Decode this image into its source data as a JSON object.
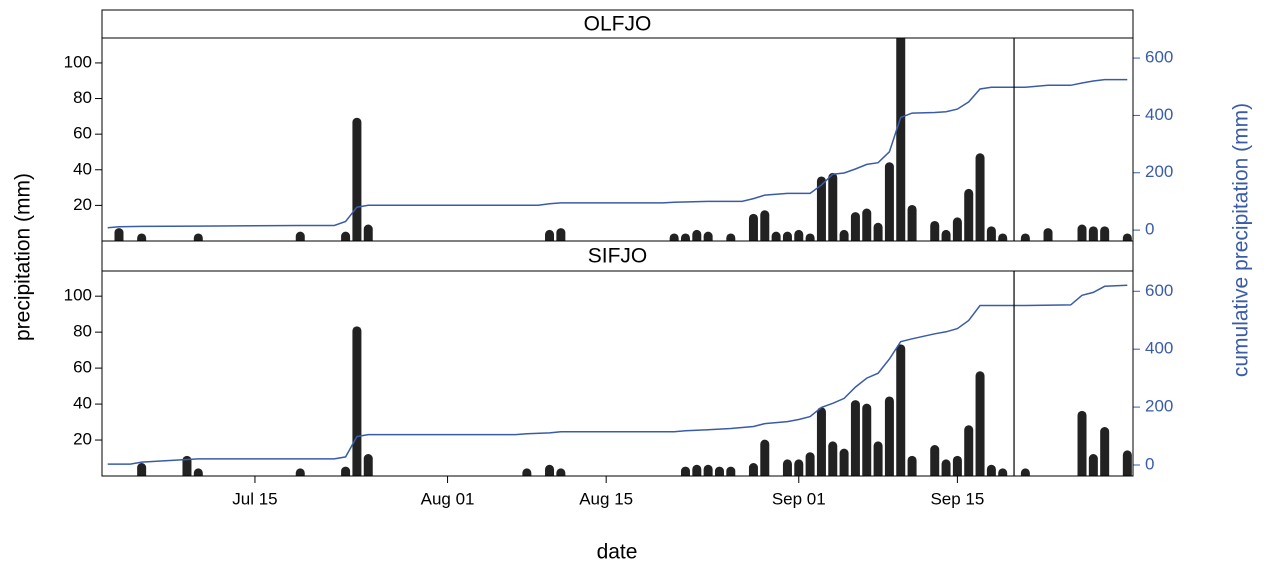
{
  "chart_data": [
    {
      "type": "combo",
      "title": "OLFJO",
      "ylabel": "precipitation (mm)",
      "y2label": "cumulative precipitation (mm)",
      "xlim": [
        "07-02",
        "09-30"
      ],
      "ylim": [
        0,
        114
      ],
      "yticks": [
        20,
        40,
        60,
        80,
        100
      ],
      "y2lim": [
        -38,
        670
      ],
      "y2ticks": [
        0,
        200,
        400,
        600
      ],
      "vline": "09-20",
      "series": [
        {
          "type": "bar",
          "color": "#222222",
          "x": [
            "07-03",
            "07-05",
            "07-10",
            "07-19",
            "07-23",
            "07-24",
            "07-25",
            "08-10",
            "08-11",
            "08-21",
            "08-22",
            "08-23",
            "08-24",
            "08-26",
            "08-28",
            "08-29",
            "08-30",
            "08-31",
            "09-01",
            "09-02",
            "09-03",
            "09-04",
            "09-05",
            "09-06",
            "09-07",
            "09-08",
            "09-09",
            "09-10",
            "09-11",
            "09-13",
            "09-14",
            "09-15",
            "09-16",
            "09-17",
            "09-18",
            "09-19",
            "09-21",
            "09-23",
            "09-26",
            "09-27",
            "09-28",
            "09-30"
          ],
          "values": [
            5,
            2,
            2,
            3,
            3,
            67,
            7,
            4,
            5,
            2,
            2,
            4,
            3,
            2,
            13,
            15,
            3,
            3,
            4,
            2,
            34,
            36,
            4,
            14,
            16,
            8,
            42,
            120,
            18,
            9,
            4,
            11,
            27,
            47,
            6,
            2,
            2,
            5,
            7,
            6,
            6,
            2
          ]
        },
        {
          "type": "line",
          "axis": "y2",
          "color": "#3a5ca8",
          "x": [
            "07-02",
            "07-03",
            "07-05",
            "07-10",
            "07-19",
            "07-22",
            "07-23",
            "07-24",
            "07-25",
            "08-09",
            "08-10",
            "08-11",
            "08-20",
            "08-21",
            "08-24",
            "08-27",
            "08-28",
            "08-29",
            "08-31",
            "09-02",
            "09-03",
            "09-04",
            "09-05",
            "09-06",
            "09-07",
            "09-08",
            "09-09",
            "09-10",
            "09-11",
            "09-13",
            "09-14",
            "09-15",
            "09-16",
            "09-17",
            "09-18",
            "09-21",
            "09-23",
            "09-25",
            "09-26",
            "09-27",
            "09-28",
            "09-30"
          ],
          "values": [
            8,
            12,
            13,
            14,
            16,
            16,
            30,
            80,
            87,
            87,
            92,
            95,
            95,
            97,
            100,
            100,
            110,
            122,
            128,
            128,
            157,
            195,
            199,
            213,
            229,
            235,
            273,
            393,
            408,
            410,
            413,
            422,
            447,
            492,
            498,
            498,
            505,
            505,
            513,
            520,
            525,
            525
          ]
        }
      ]
    },
    {
      "type": "combo",
      "title": "SIFJO",
      "xlabel": "date",
      "xlim": [
        "07-02",
        "09-30"
      ],
      "ylim": [
        0,
        114
      ],
      "yticks": [
        20,
        40,
        60,
        80,
        100
      ],
      "y2lim": [
        -38,
        670
      ],
      "y2ticks": [
        0,
        200,
        400,
        600
      ],
      "vline": "09-20",
      "xticks": [
        {
          "value": "07-15",
          "label": "Jul 15"
        },
        {
          "value": "08-01",
          "label": "Aug 01"
        },
        {
          "value": "08-15",
          "label": "Aug 15"
        },
        {
          "value": "09-01",
          "label": "Sep 01"
        },
        {
          "value": "09-15",
          "label": "Sep 15"
        }
      ],
      "series": [
        {
          "type": "bar",
          "color": "#222222",
          "x": [
            "07-05",
            "07-09",
            "07-10",
            "07-19",
            "07-23",
            "07-24",
            "07-25",
            "08-08",
            "08-10",
            "08-11",
            "08-22",
            "08-23",
            "08-24",
            "08-25",
            "08-26",
            "08-28",
            "08-29",
            "08-31",
            "09-01",
            "09-02",
            "09-03",
            "09-04",
            "09-05",
            "09-06",
            "09-07",
            "09-08",
            "09-09",
            "09-10",
            "09-11",
            "09-13",
            "09-14",
            "09-15",
            "09-16",
            "09-17",
            "09-18",
            "09-19",
            "09-21",
            "09-26",
            "09-27",
            "09-28",
            "09-30"
          ],
          "values": [
            5,
            9,
            2,
            2,
            3,
            81,
            10,
            2,
            4,
            2,
            3,
            4,
            4,
            3,
            3,
            5,
            18,
            7,
            7,
            11,
            36,
            17,
            13,
            40,
            38,
            17,
            42,
            71,
            9,
            15,
            7,
            9,
            26,
            56,
            4,
            2,
            2,
            34,
            10,
            25,
            12
          ]
        },
        {
          "type": "line",
          "axis": "y2",
          "color": "#3a5ca8",
          "x": [
            "07-02",
            "07-04",
            "07-05",
            "07-09",
            "07-10",
            "07-22",
            "07-23",
            "07-24",
            "07-25",
            "08-07",
            "08-08",
            "08-10",
            "08-11",
            "08-21",
            "08-22",
            "08-24",
            "08-26",
            "08-28",
            "08-29",
            "08-31",
            "09-01",
            "09-02",
            "09-03",
            "09-04",
            "09-05",
            "09-06",
            "09-07",
            "09-08",
            "09-09",
            "09-10",
            "09-11",
            "09-13",
            "09-14",
            "09-15",
            "09-16",
            "09-17",
            "09-21",
            "09-25",
            "09-26",
            "09-27",
            "09-28",
            "09-30"
          ],
          "values": [
            3,
            3,
            10,
            19,
            21,
            21,
            28,
            98,
            105,
            105,
            108,
            111,
            115,
            115,
            118,
            122,
            126,
            133,
            143,
            150,
            157,
            167,
            199,
            213,
            230,
            269,
            300,
            317,
            366,
            426,
            436,
            453,
            460,
            471,
            499,
            551,
            551,
            553,
            586,
            596,
            617,
            621
          ]
        }
      ]
    }
  ]
}
